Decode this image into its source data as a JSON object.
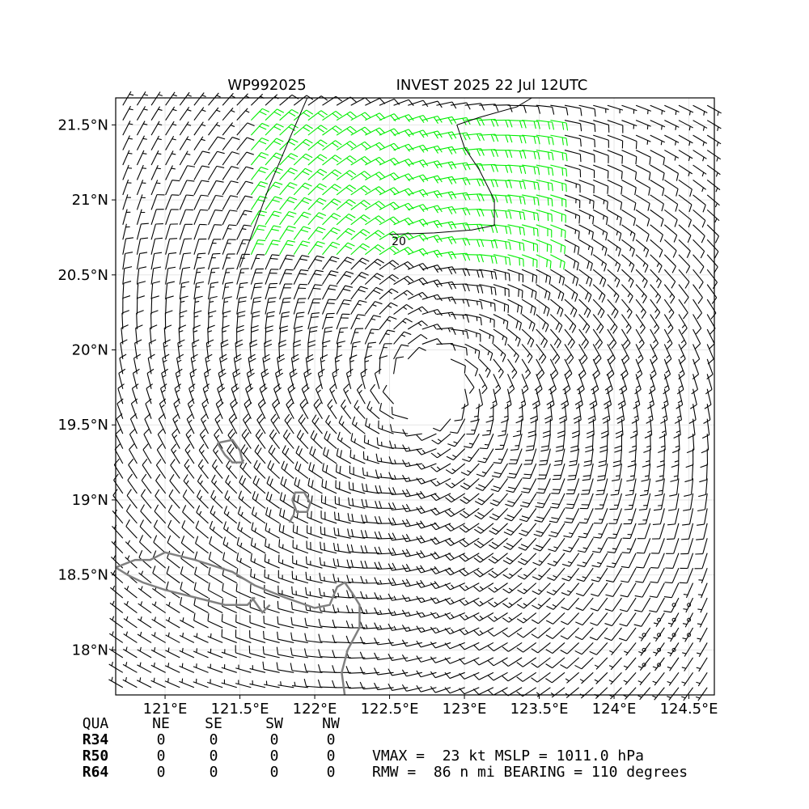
{
  "chart_data": {
    "type": "wind-barb-map",
    "title_left": "WP992025",
    "title_right": "INVEST 2025 22 Jul 12UTC",
    "xlim": [
      120.67,
      124.67
    ],
    "ylim": [
      17.7,
      21.68
    ],
    "xticks": [
      {
        "v": 121.0,
        "label": "121°E"
      },
      {
        "v": 121.5,
        "label": "121.5°E"
      },
      {
        "v": 122.0,
        "label": "122°E"
      },
      {
        "v": 122.5,
        "label": "122.5°E"
      },
      {
        "v": 123.0,
        "label": "123°E"
      },
      {
        "v": 123.5,
        "label": "123.5°E"
      },
      {
        "v": 124.0,
        "label": "124°E"
      },
      {
        "v": 124.5,
        "label": "124.5°E"
      }
    ],
    "yticks": [
      {
        "v": 18.0,
        "label": "18°N"
      },
      {
        "v": 18.5,
        "label": "18.5°N"
      },
      {
        "v": 19.0,
        "label": "19°N"
      },
      {
        "v": 19.5,
        "label": "19.5°N"
      },
      {
        "v": 20.0,
        "label": "20°N"
      },
      {
        "v": 20.5,
        "label": "20.5°N"
      },
      {
        "v": 21.0,
        "label": "21°N"
      },
      {
        "v": 21.5,
        "label": "21.5°N"
      }
    ],
    "grid": true,
    "center": {
      "lon": 122.75,
      "lat": 19.75
    },
    "contour_label": "20",
    "barb_colors": {
      "default": "#000000",
      "highlight": "#00ee00"
    },
    "coast_color": "#808080",
    "coastline": [
      [
        [
          120.67,
          18.55
        ],
        [
          120.8,
          18.6
        ],
        [
          120.9,
          18.6
        ],
        [
          121.0,
          18.65
        ],
        [
          121.2,
          18.6
        ],
        [
          121.45,
          18.52
        ],
        [
          121.6,
          18.43
        ],
        [
          121.8,
          18.35
        ],
        [
          122.0,
          18.28
        ],
        [
          122.1,
          18.3
        ],
        [
          122.15,
          18.42
        ],
        [
          122.2,
          18.45
        ],
        [
          122.25,
          18.38
        ],
        [
          122.3,
          18.3
        ],
        [
          122.3,
          18.15
        ],
        [
          122.22,
          18.0
        ],
        [
          122.18,
          17.85
        ],
        [
          122.2,
          17.7
        ]
      ],
      [
        [
          121.58,
          18.35
        ],
        [
          121.65,
          18.25
        ],
        [
          121.7,
          18.3
        ]
      ],
      [
        [
          120.67,
          18.55
        ],
        [
          120.75,
          18.5
        ],
        [
          120.85,
          18.45
        ],
        [
          121.0,
          18.4
        ],
        [
          121.2,
          18.35
        ],
        [
          121.4,
          18.3
        ],
        [
          121.55,
          18.3
        ],
        [
          121.6,
          18.35
        ]
      ],
      [
        [
          121.85,
          19.0
        ],
        [
          121.88,
          18.92
        ],
        [
          121.95,
          18.92
        ],
        [
          121.97,
          18.98
        ],
        [
          121.93,
          19.05
        ],
        [
          121.87,
          19.05
        ],
        [
          121.85,
          19.0
        ]
      ],
      [
        [
          121.83,
          18.85
        ],
        [
          121.86,
          18.9
        ]
      ],
      [
        [
          121.35,
          19.38
        ],
        [
          121.45,
          19.4
        ],
        [
          121.5,
          19.33
        ],
        [
          121.52,
          19.25
        ],
        [
          121.45,
          19.25
        ],
        [
          121.4,
          19.3
        ],
        [
          121.35,
          19.38
        ]
      ]
    ],
    "contour": [
      [
        [
          121.5,
          20.55
        ],
        [
          121.7,
          21.1
        ],
        [
          121.85,
          21.45
        ],
        [
          121.95,
          21.68
        ]
      ],
      [
        [
          122.5,
          20.77
        ],
        [
          122.8,
          20.78
        ],
        [
          123.05,
          20.8
        ],
        [
          123.2,
          20.83
        ],
        [
          123.2,
          21.0
        ],
        [
          123.1,
          21.2
        ],
        [
          123.0,
          21.35
        ],
        [
          122.95,
          21.5
        ],
        [
          123.1,
          21.55
        ],
        [
          123.35,
          21.62
        ],
        [
          123.45,
          21.68
        ]
      ]
    ],
    "stipple": [
      [
        124.2,
        17.9
      ],
      [
        124.3,
        17.9
      ],
      [
        124.3,
        18.0
      ],
      [
        124.2,
        18.0
      ],
      [
        124.4,
        18.0
      ],
      [
        124.2,
        18.1
      ],
      [
        124.3,
        18.1
      ],
      [
        124.4,
        18.1
      ],
      [
        124.5,
        18.1
      ],
      [
        124.3,
        18.2
      ],
      [
        124.4,
        18.2
      ],
      [
        124.5,
        18.2
      ],
      [
        124.4,
        18.3
      ],
      [
        124.5,
        18.3
      ]
    ],
    "table": {
      "header": [
        "QUA",
        "NE",
        "SE",
        "SW",
        "NW"
      ],
      "rows": [
        [
          "R34",
          "0",
          "0",
          "0",
          "0"
        ],
        [
          "R50",
          "0",
          "0",
          "0",
          "0"
        ],
        [
          "R64",
          "0",
          "0",
          "0",
          "0"
        ]
      ]
    },
    "info_line1": "VMAX =  23 kt MSLP = 1011.0 hPa",
    "info_line2": "RMW =  86 n mi BEARING = 110 degrees"
  }
}
